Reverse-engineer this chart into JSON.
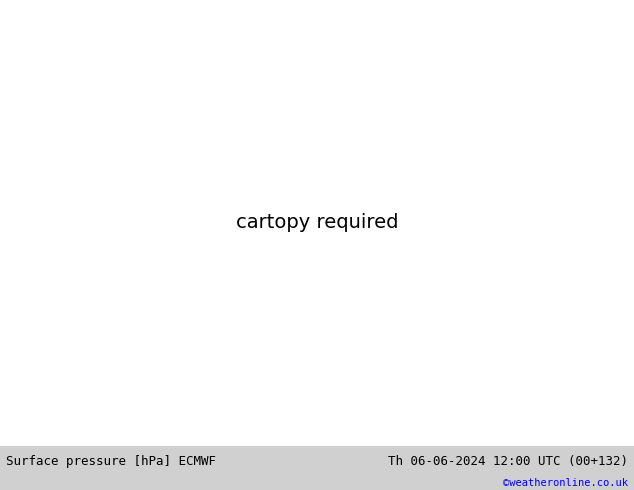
{
  "title_left": "Surface pressure [hPa] ECMWF",
  "title_right": "Th 06-06-2024 12:00 UTC (00+132)",
  "credit": "©weatheronline.co.uk",
  "bg_color": "#d8d8d8",
  "land_color": "#c8eac8",
  "ocean_color": "#d8d8d8",
  "border_color": "#888888",
  "figsize": [
    6.34,
    4.9
  ],
  "dpi": 100,
  "bottom_bar_color": "#d0d0d0",
  "lon_min": 80,
  "lon_max": 210,
  "lat_min": -58,
  "lat_max": 12
}
